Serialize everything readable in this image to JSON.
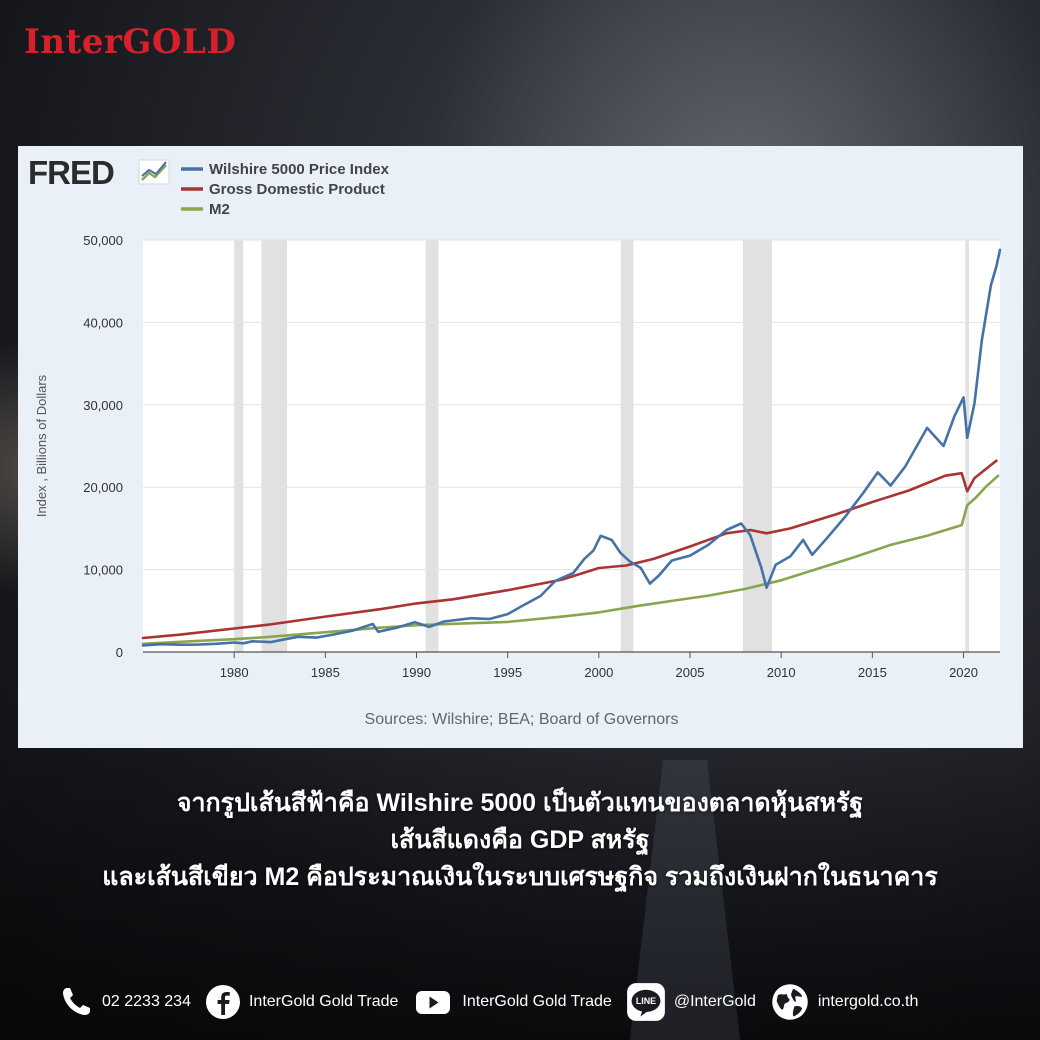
{
  "brand": {
    "logo": "InterGOLD",
    "logo_color": "#d7202a"
  },
  "chart_data": {
    "type": "line",
    "brand": "FRED",
    "ylabel": "Index , Billions of Dollars",
    "source": "Sources: Wilshire; BEA; Board of Governors",
    "ylim": [
      0,
      50000
    ],
    "xlim": [
      1975.0,
      2022.0
    ],
    "yticks": [
      0,
      10000,
      20000,
      30000,
      40000,
      50000
    ],
    "ytick_labels": [
      "0",
      "10,000",
      "20,000",
      "30,000",
      "40,000",
      "50,000"
    ],
    "xticks": [
      1980,
      1985,
      1990,
      1995,
      2000,
      2005,
      2010,
      2015,
      2020
    ],
    "xtick_labels": [
      "1980",
      "1985",
      "1990",
      "1995",
      "2000",
      "2005",
      "2010",
      "2015",
      "2020"
    ],
    "grid": true,
    "legend_position": "top-left",
    "recessions": [
      [
        1980.0,
        1980.5
      ],
      [
        1981.5,
        1982.9
      ],
      [
        1990.5,
        1991.2
      ],
      [
        2001.2,
        2001.9
      ],
      [
        2007.9,
        2009.5
      ],
      [
        2020.1,
        2020.3
      ]
    ],
    "series": [
      {
        "name": "Wilshire 5000 Price Index",
        "color": "#4572a7",
        "points": [
          [
            1975.0,
            800
          ],
          [
            1976.0,
            950
          ],
          [
            1977.0,
            880
          ],
          [
            1978.0,
            900
          ],
          [
            1979.0,
            1000
          ],
          [
            1980.0,
            1150
          ],
          [
            1980.5,
            1050
          ],
          [
            1981.0,
            1300
          ],
          [
            1982.0,
            1200
          ],
          [
            1982.8,
            1550
          ],
          [
            1983.5,
            1850
          ],
          [
            1984.5,
            1750
          ],
          [
            1985.5,
            2150
          ],
          [
            1986.5,
            2600
          ],
          [
            1987.6,
            3400
          ],
          [
            1987.9,
            2450
          ],
          [
            1989.0,
            3000
          ],
          [
            1989.9,
            3600
          ],
          [
            1990.7,
            3050
          ],
          [
            1991.5,
            3700
          ],
          [
            1993.0,
            4100
          ],
          [
            1994.0,
            4000
          ],
          [
            1995.0,
            4600
          ],
          [
            1995.8,
            5600
          ],
          [
            1996.8,
            6800
          ],
          [
            1997.6,
            8600
          ],
          [
            1998.6,
            9600
          ],
          [
            1999.2,
            11300
          ],
          [
            1999.7,
            12300
          ],
          [
            2000.1,
            14100
          ],
          [
            2000.7,
            13600
          ],
          [
            2001.2,
            12000
          ],
          [
            2001.7,
            11000
          ],
          [
            2002.3,
            10200
          ],
          [
            2002.8,
            8300
          ],
          [
            2003.3,
            9300
          ],
          [
            2004.0,
            11100
          ],
          [
            2005.0,
            11700
          ],
          [
            2006.0,
            13000
          ],
          [
            2007.0,
            14800
          ],
          [
            2007.8,
            15600
          ],
          [
            2008.3,
            14200
          ],
          [
            2008.9,
            10300
          ],
          [
            2009.2,
            7800
          ],
          [
            2009.7,
            10600
          ],
          [
            2010.5,
            11600
          ],
          [
            2011.2,
            13600
          ],
          [
            2011.7,
            11800
          ],
          [
            2012.5,
            13800
          ],
          [
            2013.5,
            16400
          ],
          [
            2014.5,
            19300
          ],
          [
            2015.3,
            21800
          ],
          [
            2016.0,
            20200
          ],
          [
            2016.8,
            22500
          ],
          [
            2018.0,
            27200
          ],
          [
            2018.9,
            25000
          ],
          [
            2019.5,
            28600
          ],
          [
            2020.0,
            30900
          ],
          [
            2020.2,
            26000
          ],
          [
            2020.6,
            30200
          ],
          [
            2021.0,
            37800
          ],
          [
            2021.5,
            44500
          ],
          [
            2021.8,
            46800
          ],
          [
            2022.0,
            48800
          ]
        ]
      },
      {
        "name": "Gross Domestic Product",
        "color": "#aa3333",
        "points": [
          [
            1975.0,
            1700
          ],
          [
            1977.0,
            2100
          ],
          [
            1980.0,
            2850
          ],
          [
            1982.0,
            3350
          ],
          [
            1985.0,
            4300
          ],
          [
            1988.0,
            5200
          ],
          [
            1990.0,
            5900
          ],
          [
            1992.0,
            6400
          ],
          [
            1995.0,
            7500
          ],
          [
            1998.0,
            8800
          ],
          [
            2000.0,
            10200
          ],
          [
            2001.5,
            10500
          ],
          [
            2003.0,
            11300
          ],
          [
            2005.0,
            12800
          ],
          [
            2007.0,
            14400
          ],
          [
            2008.3,
            14800
          ],
          [
            2009.2,
            14400
          ],
          [
            2010.5,
            15000
          ],
          [
            2013.0,
            16700
          ],
          [
            2015.0,
            18200
          ],
          [
            2017.0,
            19600
          ],
          [
            2019.0,
            21400
          ],
          [
            2019.9,
            21700
          ],
          [
            2020.2,
            19500
          ],
          [
            2020.6,
            21100
          ],
          [
            2021.5,
            22700
          ],
          [
            2021.8,
            23200
          ]
        ]
      },
      {
        "name": "M2",
        "color": "#89a54e",
        "points": [
          [
            1975.0,
            1000
          ],
          [
            1978.0,
            1350
          ],
          [
            1980.0,
            1550
          ],
          [
            1982.0,
            1850
          ],
          [
            1985.0,
            2400
          ],
          [
            1988.0,
            2950
          ],
          [
            1990.0,
            3250
          ],
          [
            1993.0,
            3500
          ],
          [
            1995.0,
            3650
          ],
          [
            1998.0,
            4300
          ],
          [
            2000.0,
            4800
          ],
          [
            2002.0,
            5550
          ],
          [
            2004.0,
            6200
          ],
          [
            2006.0,
            6850
          ],
          [
            2008.0,
            7650
          ],
          [
            2010.0,
            8700
          ],
          [
            2012.0,
            10100
          ],
          [
            2014.0,
            11500
          ],
          [
            2016.0,
            13000
          ],
          [
            2018.0,
            14100
          ],
          [
            2019.9,
            15400
          ],
          [
            2020.2,
            17800
          ],
          [
            2020.7,
            18800
          ],
          [
            2021.2,
            20000
          ],
          [
            2021.9,
            21400
          ]
        ]
      }
    ]
  },
  "caption": {
    "line1": "จากรูปเส้นสีฟ้าคือ Wilshire 5000 เป็นตัวแทนของตลาดหุ้นสหรัฐ",
    "line2": "เส้นสีแดงคือ GDP สหรัฐ",
    "line3": "และเส้นสีเขียว M2 คือประมาณเงินในระบบเศรษฐกิจ รวมถึงเงินฝากในธนาคาร"
  },
  "footer": {
    "phone": "02 2233 234",
    "facebook": "InterGold Gold Trade",
    "youtube": "InterGold Gold Trade",
    "line_icon_text": "LINE",
    "line_id": "@InterGold",
    "website": "intergold.co.th",
    "icons": [
      "phone-icon",
      "facebook-icon",
      "youtube-icon",
      "line-icon",
      "globe-icon"
    ]
  }
}
